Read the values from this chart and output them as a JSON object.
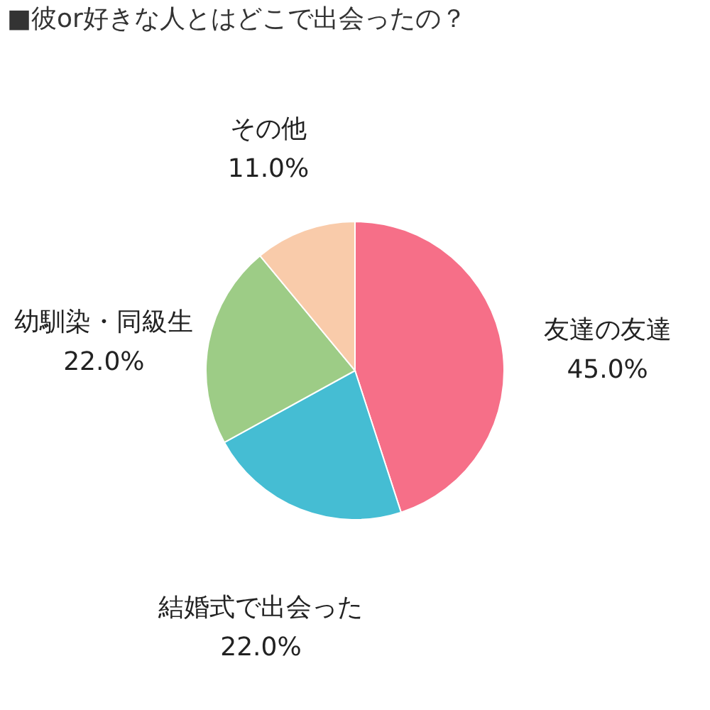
{
  "chart_data": {
    "type": "pie",
    "title": "■彼or好きな人とはどこで出会ったの？",
    "categories": [
      "友達の友達",
      "結婚式で出会った",
      "幼馴染・同級生",
      "その他"
    ],
    "values": [
      45,
      22,
      22,
      11
    ],
    "colors": [
      "#f66f88",
      "#45bdd3",
      "#9dcc86",
      "#f9cbaa"
    ],
    "value_labels": [
      "45.0%",
      "22.0%",
      "22.0%",
      "11.0%"
    ],
    "legend": false
  }
}
